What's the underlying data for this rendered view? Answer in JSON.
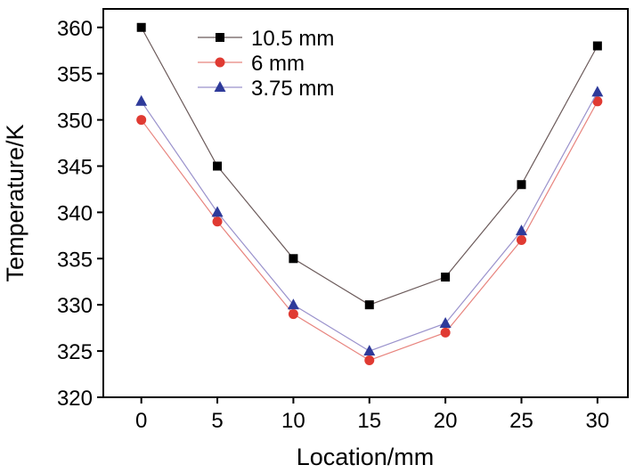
{
  "chart_data": {
    "type": "line",
    "title": "",
    "xlabel": "Location/mm",
    "ylabel": "Temperature/K",
    "x": [
      0,
      5,
      10,
      15,
      20,
      25,
      30
    ],
    "xlim": [
      -2.5,
      32
    ],
    "ylim": [
      320,
      362
    ],
    "xticks": [
      0,
      5,
      10,
      15,
      20,
      25,
      30
    ],
    "yticks": [
      320,
      325,
      330,
      335,
      340,
      345,
      350,
      355,
      360
    ],
    "grid": false,
    "legend_position": "top-left",
    "series": [
      {
        "name": "10.5 mm",
        "marker": "square",
        "color": "#000000",
        "line_color": "#6b5a5a",
        "values": [
          360,
          345,
          335,
          330,
          333,
          343,
          358
        ]
      },
      {
        "name": "6 mm",
        "marker": "circle",
        "color": "#e03a32",
        "line_color": "#e8847e",
        "values": [
          350,
          339,
          329,
          324,
          327,
          337,
          352
        ]
      },
      {
        "name": "3.75 mm",
        "marker": "triangle",
        "color": "#2e3a9a",
        "line_color": "#9a92cc",
        "values": [
          352,
          340,
          330,
          325,
          328,
          338,
          353
        ]
      }
    ]
  }
}
